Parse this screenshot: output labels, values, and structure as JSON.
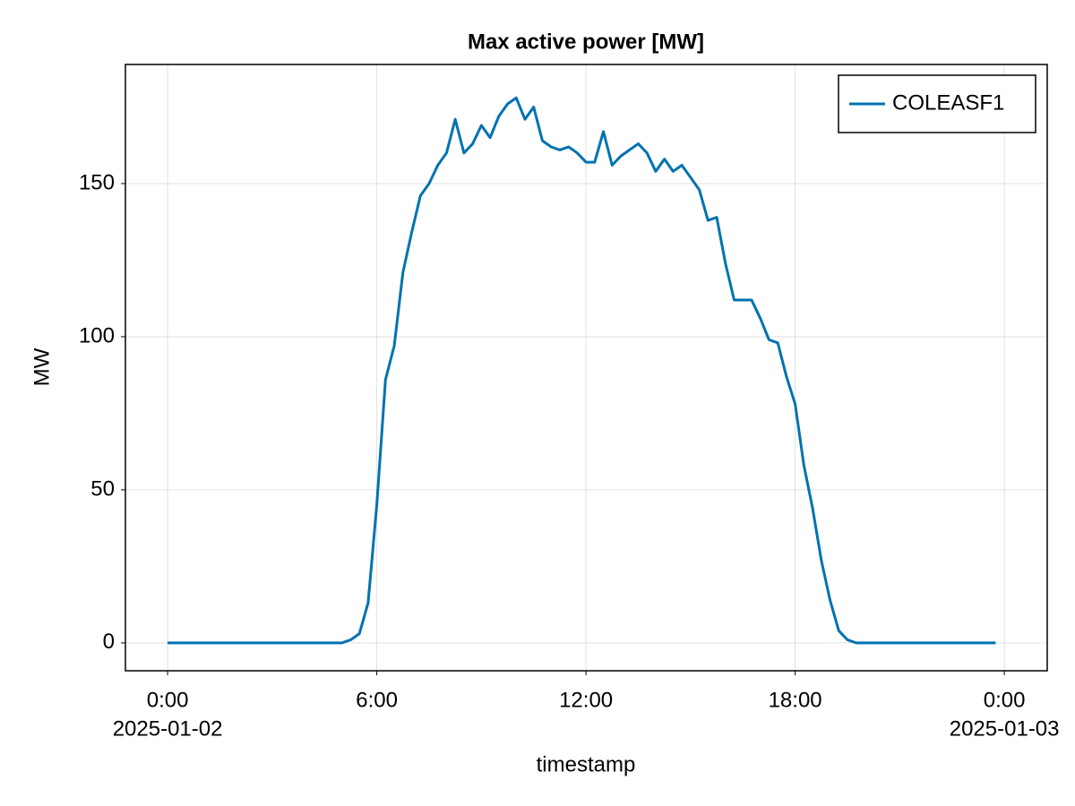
{
  "chart_data": {
    "type": "line",
    "title": "Max active power [MW]",
    "x_label": "timestamp",
    "y_label": "MW",
    "x": [
      0,
      0.25,
      0.5,
      0.75,
      1,
      1.25,
      1.5,
      1.75,
      2,
      2.25,
      2.5,
      2.75,
      3,
      3.25,
      3.5,
      3.75,
      4,
      4.25,
      4.5,
      4.75,
      5,
      5.25,
      5.5,
      5.75,
      6,
      6.25,
      6.5,
      6.75,
      7,
      7.25,
      7.5,
      7.75,
      8,
      8.25,
      8.5,
      8.75,
      9,
      9.25,
      9.5,
      9.75,
      10,
      10.25,
      10.5,
      10.75,
      11,
      11.25,
      11.5,
      11.75,
      12,
      12.25,
      12.5,
      12.75,
      13,
      13.25,
      13.5,
      13.75,
      14,
      14.25,
      14.5,
      14.75,
      15,
      15.25,
      15.5,
      15.75,
      16,
      16.25,
      16.5,
      16.75,
      17,
      17.25,
      17.5,
      17.75,
      18,
      18.25,
      18.5,
      18.75,
      19,
      19.25,
      19.5,
      19.75,
      20,
      20.25,
      20.5,
      20.75,
      21,
      21.25,
      21.5,
      21.75,
      22,
      22.25,
      22.5,
      22.75,
      23,
      23.25,
      23.5,
      23.75
    ],
    "series": [
      {
        "name": "COLEASF1",
        "color": "#0072b2",
        "values": [
          0,
          0,
          0,
          0,
          0,
          0,
          0,
          0,
          0,
          0,
          0,
          0,
          0,
          0,
          0,
          0,
          0,
          0,
          0,
          0,
          0,
          1,
          3,
          13,
          45,
          86,
          97,
          121,
          134,
          146,
          150,
          156,
          160,
          171,
          160,
          163,
          169,
          165,
          172,
          176,
          178,
          171,
          175,
          164,
          162,
          161,
          162,
          160,
          157,
          157,
          167,
          156,
          159,
          161,
          163,
          160,
          154,
          158,
          154,
          156,
          152,
          148,
          138,
          139,
          124,
          112,
          112,
          112,
          106,
          99,
          98,
          87,
          78,
          58,
          44,
          27,
          14,
          4,
          1,
          0,
          0,
          0,
          0,
          0,
          0,
          0,
          0,
          0,
          0,
          0,
          0,
          0,
          0,
          0,
          0,
          0
        ]
      }
    ],
    "xlim": [
      -1.21,
      25.23
    ],
    "xticks": [
      {
        "value": 0,
        "label": [
          "0:00",
          "2025-01-02"
        ]
      },
      {
        "value": 6,
        "label": [
          "6:00"
        ]
      },
      {
        "value": 12,
        "label": [
          "12:00"
        ]
      },
      {
        "value": 18,
        "label": [
          "18:00"
        ]
      },
      {
        "value": 24,
        "label": [
          "0:00",
          "2025-01-03"
        ]
      }
    ],
    "ylim": [
      -9.1,
      188.9
    ],
    "yticks": [
      0,
      50,
      100,
      150
    ],
    "grid": true,
    "legend": "top-right"
  }
}
